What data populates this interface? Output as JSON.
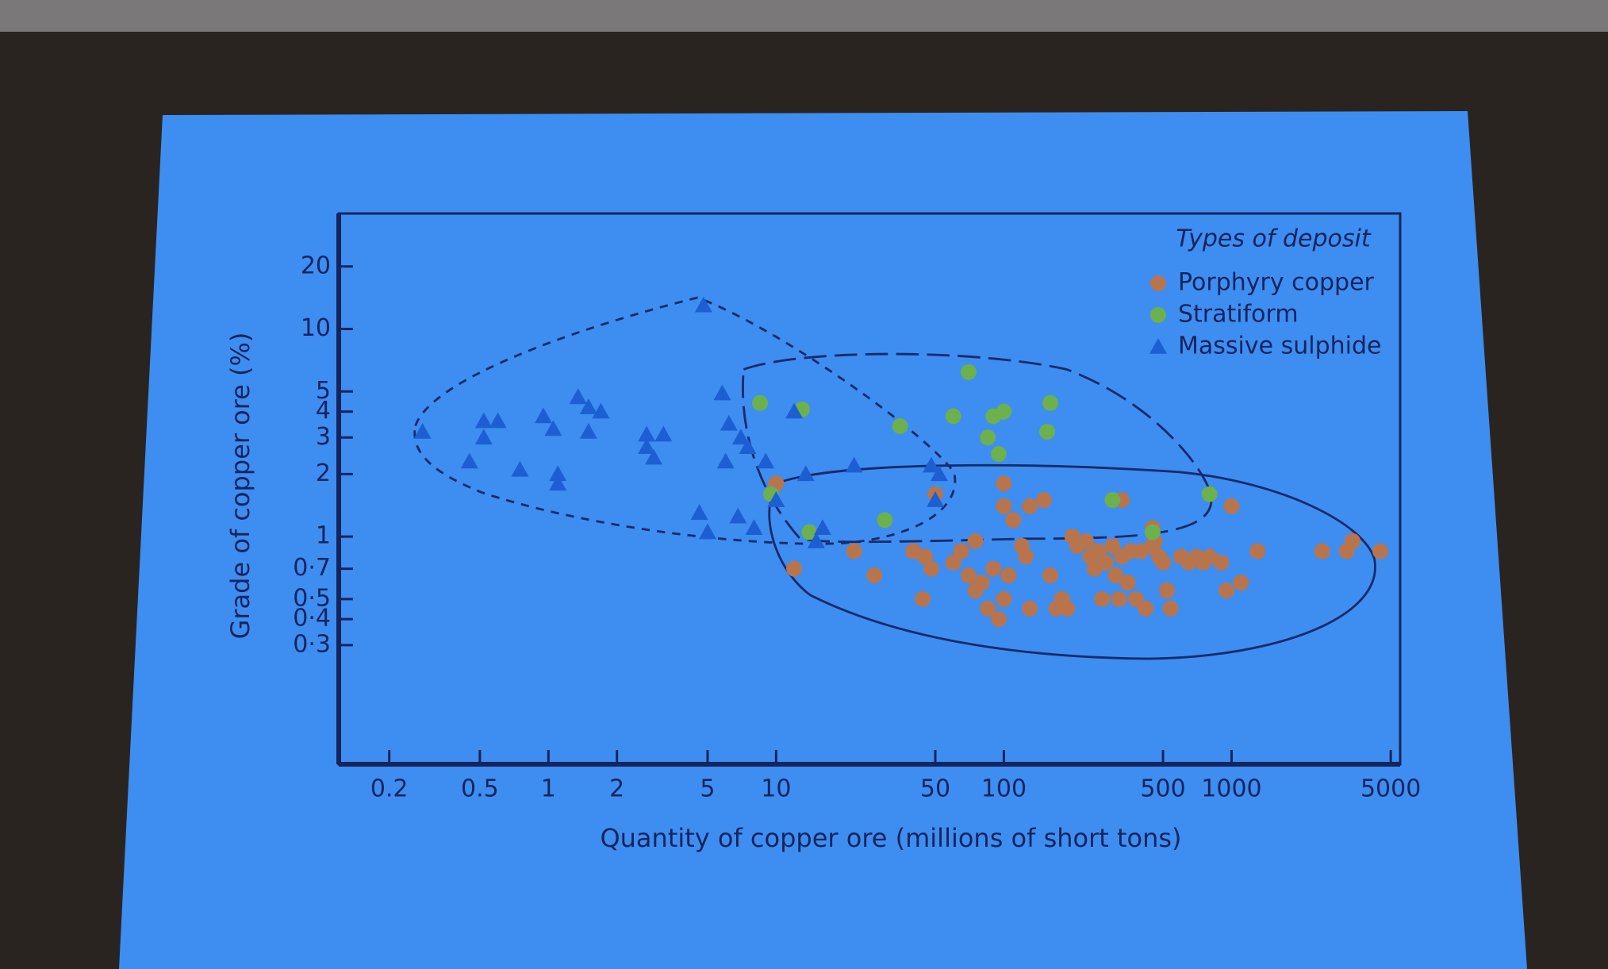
{
  "chart_data": {
    "type": "scatter",
    "xlabel": "Quantity of copper ore (millions of short tons)",
    "ylabel": "Grade of copper ore (%)",
    "legend_title": "Types of deposit",
    "legend": "upper right",
    "xscale": "log",
    "yscale": "log",
    "xlim": [
      0.12,
      5500
    ],
    "ylim": [
      0.08,
      36
    ],
    "xticks": [
      0.2,
      0.5,
      1,
      2,
      5,
      10,
      50,
      100,
      500,
      1000,
      5000
    ],
    "yticks": [
      20,
      10,
      5,
      4,
      3,
      2,
      1,
      {
        "value": 0.7,
        "label": "0·7"
      },
      {
        "value": 0.5,
        "label": "0·5"
      },
      {
        "value": 0.4,
        "label": "0·4"
      },
      {
        "value": 0.3,
        "label": "0·3"
      }
    ],
    "series": [
      {
        "name": "Porphyry copper",
        "color": "#b8744c",
        "marker": "circle",
        "x": [
          10,
          12,
          22,
          27,
          40,
          45,
          48,
          44,
          50,
          60,
          65,
          70,
          75,
          80,
          75,
          85,
          90,
          95,
          100,
          100,
          100,
          105,
          110,
          120,
          125,
          130,
          130,
          150,
          160,
          170,
          180,
          190,
          200,
          210,
          230,
          240,
          250,
          260,
          270,
          280,
          300,
          310,
          320,
          330,
          350,
          360,
          380,
          400,
          420,
          450,
          460,
          480,
          500,
          520,
          540,
          600,
          650,
          700,
          750,
          800,
          900,
          950,
          1000,
          1100,
          1300,
          2500,
          3200,
          3400,
          4500,
          450,
          330
        ],
        "values": [
          1.8,
          0.7,
          0.85,
          0.65,
          0.85,
          0.8,
          0.7,
          0.5,
          1.6,
          0.75,
          0.85,
          0.65,
          0.95,
          0.6,
          0.55,
          0.45,
          0.7,
          0.4,
          0.5,
          1.8,
          1.4,
          0.65,
          1.2,
          0.9,
          0.8,
          1.4,
          0.45,
          1.5,
          0.65,
          0.45,
          0.5,
          0.45,
          1.0,
          0.9,
          0.95,
          0.8,
          0.7,
          0.85,
          0.5,
          0.75,
          0.9,
          0.65,
          0.5,
          0.8,
          0.6,
          0.85,
          0.5,
          0.85,
          0.45,
          0.9,
          0.95,
          0.8,
          0.75,
          0.55,
          0.45,
          0.8,
          0.75,
          0.8,
          0.75,
          0.8,
          0.75,
          0.55,
          1.4,
          0.6,
          0.85,
          0.85,
          0.85,
          0.95,
          0.85,
          1.1,
          1.5
        ]
      },
      {
        "name": "Stratiform",
        "color": "#6db04e",
        "marker": "circle",
        "x": [
          8.5,
          13,
          9.5,
          14,
          30,
          35,
          60,
          70,
          85,
          90,
          100,
          95,
          160,
          155,
          300,
          450,
          800
        ],
        "values": [
          4.4,
          4.1,
          1.6,
          1.05,
          1.2,
          3.4,
          3.8,
          6.2,
          3.0,
          3.8,
          4.0,
          2.5,
          4.4,
          3.2,
          1.5,
          1.05,
          1.6
        ]
      },
      {
        "name": "Massive sulphide",
        "color": "#1d5fd2",
        "marker": "triangle",
        "x": [
          0.28,
          0.45,
          0.52,
          0.6,
          0.52,
          0.75,
          0.95,
          1.05,
          1.1,
          1.1,
          1.35,
          1.5,
          1.5,
          1.7,
          2.7,
          2.7,
          2.9,
          3.2,
          4.8,
          4.6,
          5,
          5.8,
          6.2,
          6,
          7,
          7.5,
          6.8,
          8,
          9,
          10,
          12,
          13.5,
          15,
          16,
          22,
          48,
          52,
          50
        ],
        "values": [
          3.2,
          2.3,
          3.6,
          3.6,
          3.0,
          2.1,
          3.8,
          3.3,
          2.0,
          1.8,
          4.7,
          4.2,
          3.2,
          4.0,
          3.1,
          2.7,
          2.4,
          3.1,
          13,
          1.3,
          1.05,
          4.9,
          3.5,
          2.3,
          3.0,
          2.7,
          1.25,
          1.1,
          2.3,
          1.5,
          4.0,
          2.0,
          0.95,
          1.1,
          2.2,
          2.2,
          2.0,
          1.5
        ]
      }
    ]
  }
}
